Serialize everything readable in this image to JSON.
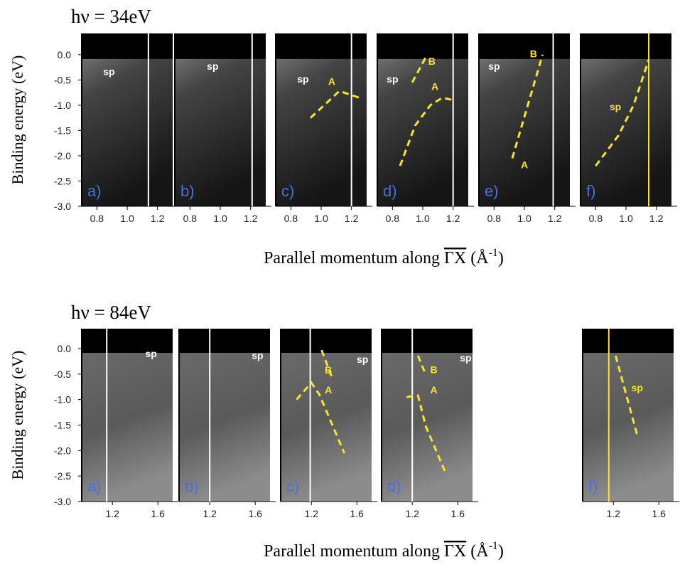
{
  "chart_data": [
    {
      "type": "image-panels",
      "title": "hν = 34eV",
      "ylabel": "Binding energy (eV)",
      "xlabel": {
        "text": "Parallel momentum along ",
        "overline": "ΓX",
        "unit": "(Å",
        "exponent": "-1",
        "close": ")"
      },
      "ylim": [
        -3.0,
        0.42
      ],
      "yticks": [
        {
          "value": 0,
          "label": "0.0"
        },
        -0.5,
        {
          "value": -1,
          "label": "-1.0"
        },
        -1.5,
        {
          "value": -2,
          "label": "-2.0"
        },
        -2.5,
        {
          "value": -3,
          "label": "-3.0"
        }
      ],
      "xlim": [
        0.7,
        1.3
      ],
      "xticks": [
        0.8,
        {
          "value": 1,
          "label": "1.0"
        },
        1.2
      ],
      "panels": [
        {
          "label": "a)",
          "marker": {
            "x": 1.14,
            "color": "#ffffff"
          },
          "annotations": [
            {
              "text": "sp",
              "x": 0.88,
              "y": -0.4,
              "color": "#ffffff"
            }
          ],
          "curves": []
        },
        {
          "label": "b)",
          "marker": {
            "x": 1.21,
            "color": "#ffffff"
          },
          "annotations": [
            {
              "text": "sp",
              "x": 0.95,
              "y": -0.3,
              "color": "#ffffff"
            }
          ],
          "curves": []
        },
        {
          "label": "c)",
          "marker": {
            "x": 1.2,
            "color": "#ffffff"
          },
          "annotations": [
            {
              "text": "sp",
              "x": 0.88,
              "y": -0.55,
              "color": "#ffffff"
            },
            {
              "text": "A",
              "x": 1.07,
              "y": -0.6,
              "color": "#f5e62a"
            }
          ],
          "curves": [
            {
              "x": [
                0.93,
                1.12,
                1.25
              ],
              "y": [
                -1.25,
                -0.72,
                -0.85
              ],
              "color": "#f5e62a"
            }
          ]
        },
        {
          "label": "d)",
          "marker": {
            "x": 1.2,
            "color": "#ffffff"
          },
          "annotations": [
            {
              "text": "sp",
              "x": 0.8,
              "y": -0.55,
              "color": "#ffffff"
            },
            {
              "text": "B",
              "x": 1.06,
              "y": -0.2,
              "color": "#f5e62a"
            },
            {
              "text": "A",
              "x": 1.08,
              "y": -0.7,
              "color": "#f5e62a"
            }
          ],
          "curves": [
            {
              "x": [
                0.85,
                0.95,
                1.05,
                1.13,
                1.2
              ],
              "y": [
                -2.2,
                -1.4,
                -1.0,
                -0.85,
                -0.9
              ],
              "color": "#f5e62a"
            },
            {
              "x": [
                0.93,
                1.02
              ],
              "y": [
                -0.55,
                -0.05
              ],
              "color": "#f5e62a"
            }
          ]
        },
        {
          "label": "e)",
          "marker": {
            "x": 1.19,
            "color": "#ffffff"
          },
          "annotations": [
            {
              "text": "sp",
              "x": 0.8,
              "y": -0.3,
              "color": "#ffffff"
            },
            {
              "text": "B",
              "x": 1.06,
              "y": -0.05,
              "color": "#f5e62a"
            },
            {
              "text": "A",
              "x": 1.0,
              "y": -2.25,
              "color": "#f5e62a"
            }
          ],
          "curves": [
            {
              "x": [
                0.92,
                1.12
              ],
              "y": [
                -2.05,
                0.0
              ],
              "color": "#f5e62a"
            }
          ]
        },
        {
          "label": "f)",
          "marker": {
            "x": 1.15,
            "color": "#f5e62a"
          },
          "annotations": [
            {
              "text": "sp",
              "x": 0.93,
              "y": -1.1,
              "color": "#f5e62a"
            }
          ],
          "curves": [
            {
              "x": [
                0.8,
                0.95,
                1.05,
                1.15
              ],
              "y": [
                -2.2,
                -1.6,
                -1.0,
                -0.1
              ],
              "color": "#f5e62a"
            }
          ]
        }
      ]
    },
    {
      "type": "image-panels",
      "title": "hν = 84eV",
      "ylabel": "Binding energy (eV)",
      "xlabel": {
        "text": "Parallel momentum along ",
        "overline": "ΓX",
        "unit": "(Å",
        "exponent": "-1",
        "close": ")"
      },
      "ylim": [
        -3.0,
        0.39
      ],
      "yticks": [
        {
          "value": 0,
          "label": "0.0"
        },
        -0.5,
        {
          "value": -1,
          "label": "-1.0"
        },
        -1.5,
        {
          "value": -2,
          "label": "-2.0"
        },
        -2.5,
        {
          "value": -3,
          "label": "-3.0"
        }
      ],
      "xlim": [
        0.93,
        1.73
      ],
      "xticks": [
        1.2,
        1.6
      ],
      "panels": [
        {
          "label": "a)",
          "marker": {
            "x": 1.15,
            "color": "#ffffff"
          },
          "annotations": [
            {
              "text": "sp",
              "x": 1.54,
              "y": -0.17,
              "color": "#ffffff"
            }
          ],
          "curves": []
        },
        {
          "label": "b)",
          "marker": {
            "x": 1.2,
            "color": "#ffffff"
          },
          "annotations": [
            {
              "text": "sp",
              "x": 1.62,
              "y": -0.2,
              "color": "#ffffff"
            }
          ],
          "curves": []
        },
        {
          "label": "c)",
          "marker": {
            "x": 1.19,
            "color": "#ffffff"
          },
          "annotations": [
            {
              "text": "sp",
              "x": 1.65,
              "y": -0.28,
              "color": "#ffffff"
            },
            {
              "text": "B",
              "x": 1.35,
              "y": -0.49,
              "color": "#f5e62a"
            },
            {
              "text": "A",
              "x": 1.35,
              "y": -0.88,
              "color": "#f5e62a"
            }
          ],
          "curves": [
            {
              "x": [
                1.07,
                1.2,
                1.27,
                1.49
              ],
              "y": [
                -1.0,
                -0.67,
                -0.9,
                -2.05
              ],
              "color": "#f5e62a"
            },
            {
              "x": [
                1.29,
                1.38
              ],
              "y": [
                -0.03,
                -0.56
              ],
              "color": "#f5e62a"
            }
          ]
        },
        {
          "label": "d)",
          "marker": {
            "x": 1.2,
            "color": "#ffffff"
          },
          "annotations": [
            {
              "text": "sp",
              "x": 1.67,
              "y": -0.25,
              "color": "#ffffff"
            },
            {
              "text": "B",
              "x": 1.39,
              "y": -0.48,
              "color": "#f5e62a"
            },
            {
              "text": "A",
              "x": 1.39,
              "y": -0.88,
              "color": "#f5e62a"
            }
          ],
          "curves": [
            {
              "x": [
                1.15,
                1.25,
                1.32,
                1.49
              ],
              "y": [
                -0.95,
                -0.92,
                -1.53,
                -2.42
              ],
              "color": "#f5e62a"
            },
            {
              "x": [
                1.25,
                1.32
              ],
              "y": [
                -0.14,
                -0.52
              ],
              "color": "#f5e62a"
            }
          ]
        },
        {
          "label": "f)",
          "marker": {
            "x": 1.16,
            "color": "#f5e62a"
          },
          "annotations": [
            {
              "text": "sp",
              "x": 1.41,
              "y": -0.84,
              "color": "#f5e62a"
            }
          ],
          "curves": [
            {
              "x": [
                1.22,
                1.41
              ],
              "y": [
                -0.14,
                -1.7
              ],
              "color": "#f5e62a"
            }
          ]
        }
      ]
    }
  ]
}
